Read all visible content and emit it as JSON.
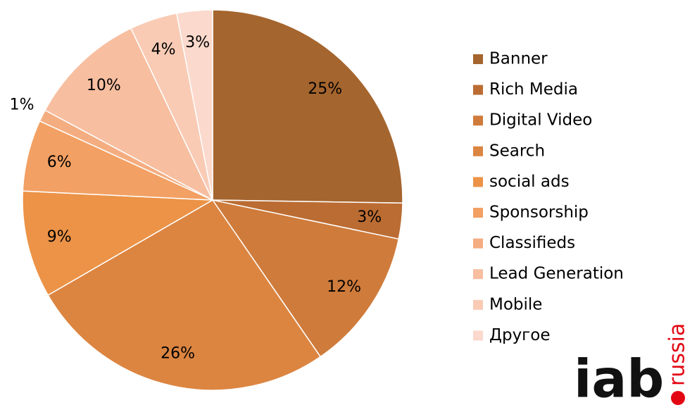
{
  "chart_data": {
    "type": "pie",
    "categories": [
      "Banner",
      "Rich Media",
      "Digital Video",
      "Search",
      "social ads",
      "Sponsorship",
      "Classifieds",
      "Lead Generation",
      "Mobile",
      "Другое"
    ],
    "values": [
      25,
      3,
      12,
      26,
      9,
      6,
      1,
      10,
      4,
      3
    ],
    "value_labels": [
      "25%",
      "3%",
      "12%",
      "26%",
      "9%",
      "6%",
      "1%",
      "10%",
      "4%",
      "3%"
    ],
    "colors": [
      "#a5652e",
      "#bb6c32",
      "#cf7b3b",
      "#dc8541",
      "#ec9347",
      "#f2a063",
      "#f4ad80",
      "#f7bea0",
      "#f9cbb5",
      "#fbd9cc"
    ],
    "legend": "right"
  },
  "logo": {
    "main": "iab",
    "sub": "russia"
  }
}
